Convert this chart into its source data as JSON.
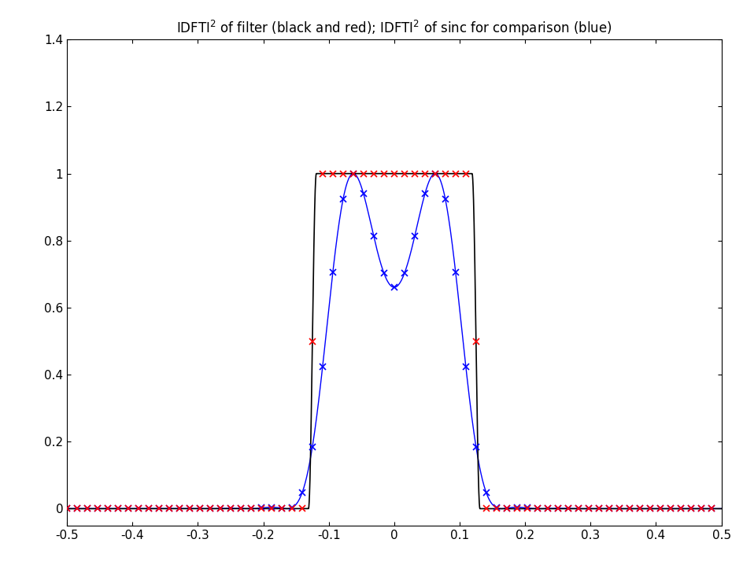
{
  "title": "IDFTI$^2$ of filter (black and red); IDFTI$^2$ of sinc for comparison (blue)",
  "xlim": [
    -0.5,
    0.5
  ],
  "ylim": [
    -0.05,
    1.4
  ],
  "xticks": [
    -0.5,
    -0.4,
    -0.3,
    -0.2,
    -0.1,
    0.0,
    0.1,
    0.2,
    0.3,
    0.4,
    0.5
  ],
  "yticks": [
    0.0,
    0.2,
    0.4,
    0.6,
    0.8,
    1.0,
    1.2,
    1.4
  ],
  "filter_cutoff": 0.125,
  "filter_rolloff": 0.006,
  "black_color": "#000000",
  "red_color": "#ff0000",
  "blue_color": "#0000ff",
  "bg_color": "#ffffff",
  "title_fontsize": 12,
  "N_markers": 64,
  "N_sinc_filter": 16
}
